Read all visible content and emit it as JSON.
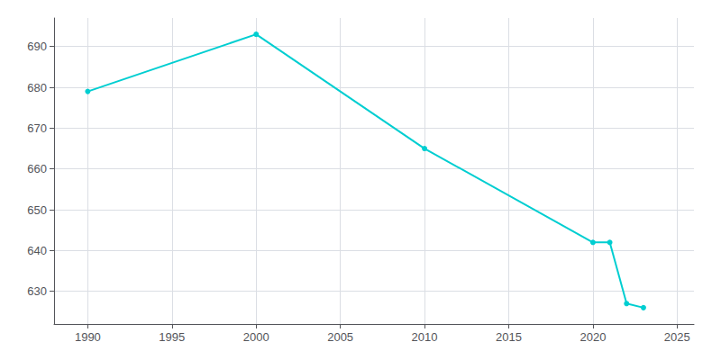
{
  "chart_data": {
    "type": "line",
    "x": [
      1990,
      2000,
      2010,
      2020,
      2021,
      2022,
      2023
    ],
    "values": [
      679,
      693,
      665,
      642,
      642,
      627,
      626
    ],
    "color": "#00CED1",
    "marker": "circle",
    "xlim": [
      1988,
      2026
    ],
    "xticks": [
      1990,
      1995,
      2000,
      2005,
      2010,
      2015,
      2020,
      2025
    ],
    "ylim": [
      622,
      697
    ],
    "yticks": [
      630,
      640,
      650,
      660,
      670,
      680,
      690
    ],
    "grid": true
  }
}
